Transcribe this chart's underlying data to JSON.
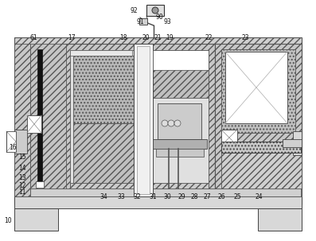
{
  "figsize": [
    3.97,
    3.03
  ],
  "dpi": 100,
  "labels": [
    [
      "10",
      10,
      278
    ],
    [
      "11",
      28,
      242
    ],
    [
      "12",
      28,
      233
    ],
    [
      "13",
      28,
      224
    ],
    [
      "14",
      28,
      211
    ],
    [
      "15",
      28,
      197
    ],
    [
      "16",
      16,
      185
    ],
    [
      "17",
      90,
      48
    ],
    [
      "18",
      155,
      48
    ],
    [
      "19",
      213,
      48
    ],
    [
      "20",
      183,
      48
    ],
    [
      "21",
      198,
      48
    ],
    [
      "22",
      262,
      48
    ],
    [
      "23",
      308,
      48
    ],
    [
      "24",
      325,
      248
    ],
    [
      "25",
      298,
      248
    ],
    [
      "26",
      278,
      248
    ],
    [
      "27",
      260,
      248
    ],
    [
      "28",
      244,
      248
    ],
    [
      "29",
      228,
      248
    ],
    [
      "30",
      210,
      248
    ],
    [
      "31",
      192,
      248
    ],
    [
      "32",
      172,
      248
    ],
    [
      "33",
      152,
      248
    ],
    [
      "34",
      130,
      248
    ],
    [
      "61",
      42,
      48
    ],
    [
      "90",
      200,
      22
    ],
    [
      "91",
      176,
      27
    ],
    [
      "92",
      168,
      14
    ],
    [
      "93",
      210,
      27
    ]
  ],
  "hatch_bg": "#d2d2d2",
  "hatch_dark": "#b8b8b8",
  "hatch_med": "#c5c5c5",
  "dot_fill": "#c0c0c0",
  "white": "#ffffff",
  "light_gray": "#e8e8e8",
  "mid_gray": "#aaaaaa",
  "dark_gray": "#888888",
  "ec": "#444444",
  "lc": "#333333"
}
